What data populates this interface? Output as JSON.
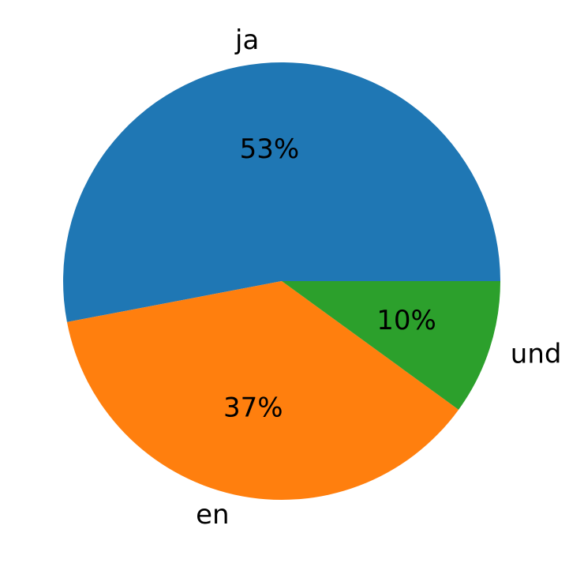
{
  "chart_data": {
    "type": "pie",
    "title": "",
    "categories": [
      "ja",
      "en",
      "und"
    ],
    "values": [
      53,
      37,
      10
    ],
    "value_labels": [
      "53%",
      "37%",
      "10%"
    ],
    "colors": [
      "#1f77b4",
      "#ff7f0e",
      "#2ca02c"
    ],
    "start_angle_deg": 0,
    "direction": "counterclockwise",
    "legend": "none"
  }
}
